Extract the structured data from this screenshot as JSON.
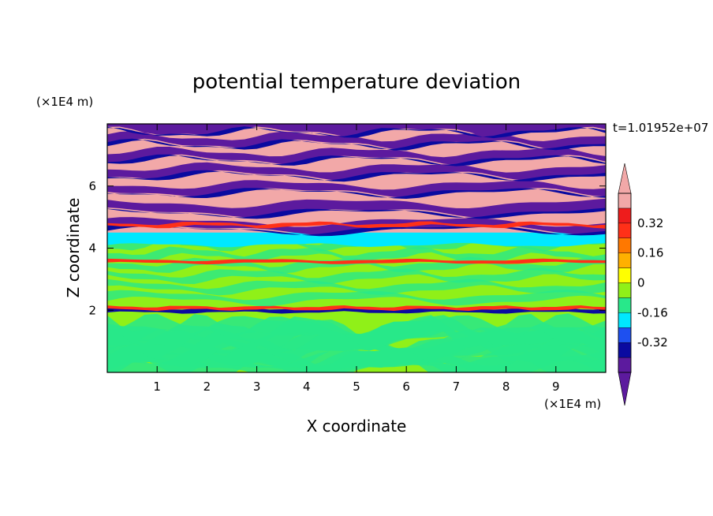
{
  "chart_data": {
    "type": "heatmap",
    "title": "potential temperature deviation",
    "xlabel": "X coordinate",
    "ylabel": "Z coordinate",
    "x_unit": "(×1E4 m)",
    "y_unit": "(×1E4 m)",
    "time_label": "t=1.01952e+07",
    "xlim": [
      0,
      10
    ],
    "ylim": [
      0,
      8
    ],
    "x_ticks": [
      "1",
      "2",
      "3",
      "4",
      "5",
      "6",
      "7",
      "8",
      "9"
    ],
    "y_ticks": [
      "2",
      "4",
      "6"
    ],
    "grid": false,
    "colorbar": {
      "levels": [
        -0.48,
        -0.4,
        -0.32,
        -0.24,
        -0.16,
        -0.08,
        0,
        0.08,
        0.16,
        0.24,
        0.32,
        0.4,
        0.48
      ],
      "labels": [
        "-0.32",
        "-0.16",
        "0",
        "0.16",
        "0.32"
      ],
      "colors_low_to_high": [
        "#5c1a9e",
        "#0a0aa0",
        "#1e50f0",
        "#00e8ff",
        "#28e88a",
        "#90f018",
        "#ffff00",
        "#ffb000",
        "#ff7800",
        "#ff3018",
        "#ee1c1c",
        "#f2a8a8"
      ],
      "extend": "both"
    },
    "bands": [
      {
        "z_from": 0,
        "z_to": 2,
        "value_range": [
          0,
          0.08
        ],
        "dominant_colors": [
          "#90f018",
          "#28e88a"
        ]
      },
      {
        "z_from": 1.9,
        "z_to": 2.1,
        "value_range": [
          -0.32,
          0.32
        ],
        "feature": "thin layer of strong mixed positive and negative deviation"
      },
      {
        "z_from": 2.1,
        "z_to": 4.5,
        "value_range": [
          0,
          0.08
        ],
        "dominant_colors": [
          "#90f018",
          "#28e88a"
        ]
      },
      {
        "z_from": 4.1,
        "z_to": 4.7,
        "value_range": [
          -0.08,
          0
        ],
        "dominant_colors": [
          "#00e8ff",
          "#28e88a"
        ]
      },
      {
        "z_from": 4.5,
        "z_to": 8,
        "value_range": [
          -0.48,
          0.48
        ],
        "feature": "alternating saturated high (pink) and low (purple) layers"
      }
    ]
  }
}
